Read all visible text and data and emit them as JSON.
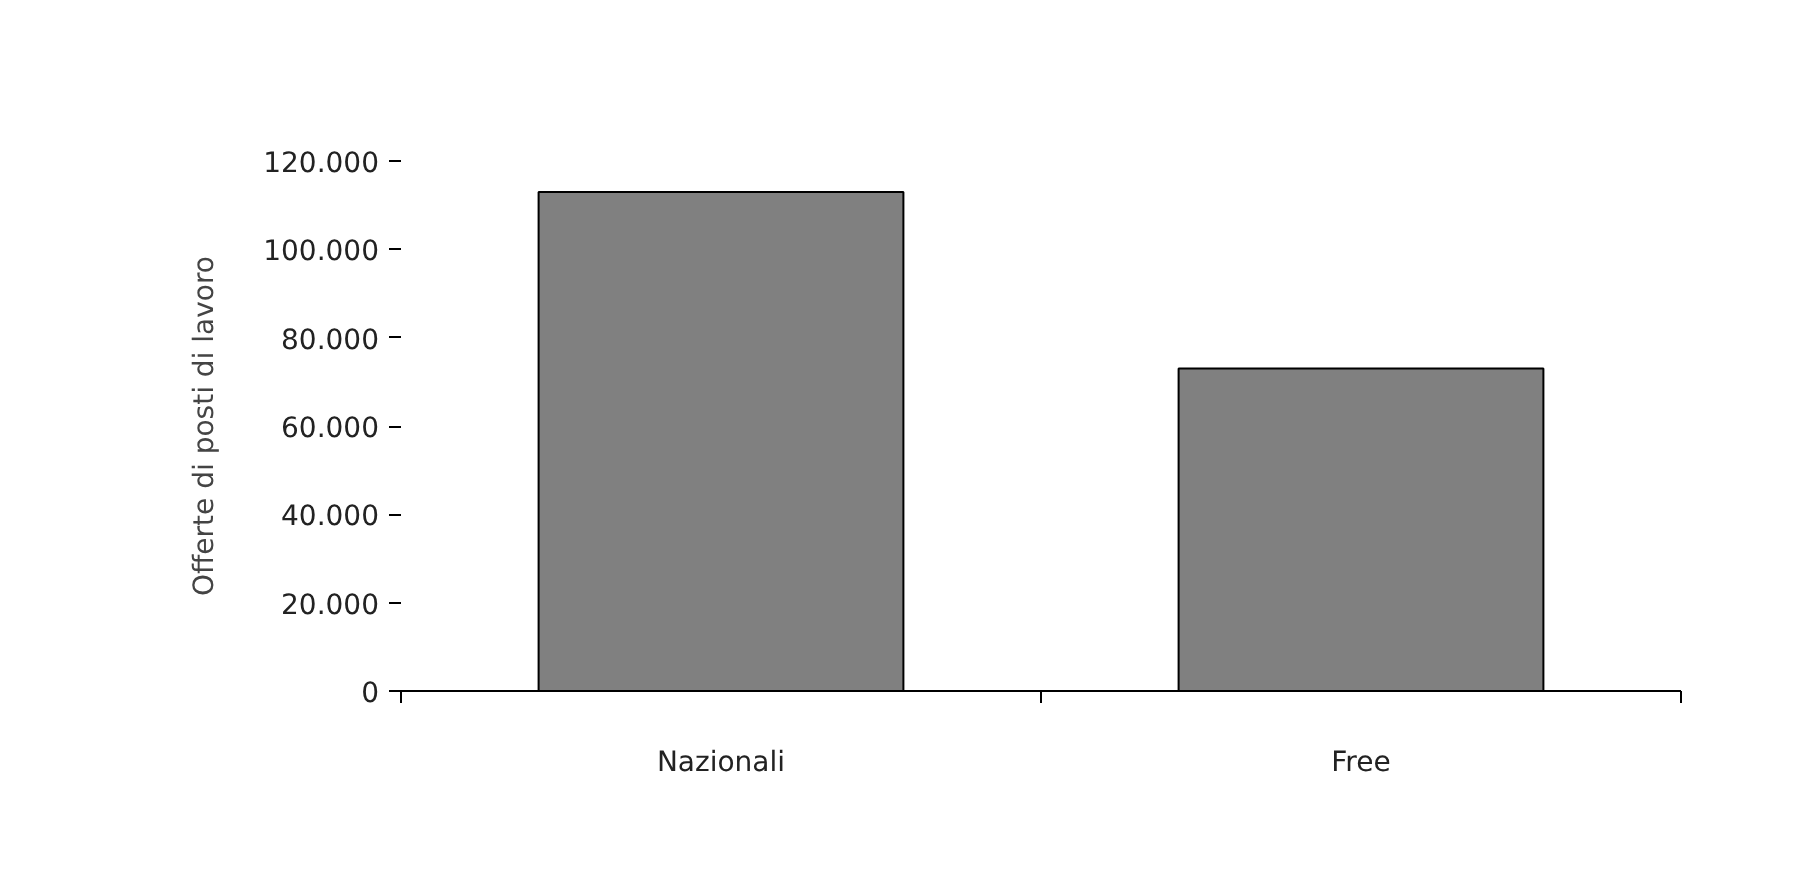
{
  "chart_data": {
    "type": "bar",
    "categories": [
      "Nazionali",
      "Free"
    ],
    "values": [
      113000,
      73000
    ],
    "color": "#808080",
    "ylabel": "Offerte di posti di lavoro",
    "ylim": [
      0,
      120000
    ],
    "yticks": [
      0,
      {
        "value": 20000,
        "label": "20.000"
      },
      {
        "value": 40000,
        "label": "40.000"
      },
      {
        "value": 60000,
        "label": "60.000"
      },
      {
        "value": 80000,
        "label": "80.000"
      },
      {
        "value": 100000,
        "label": "100.000"
      },
      {
        "value": 120000,
        "label": "120.000"
      }
    ],
    "grid": false
  }
}
